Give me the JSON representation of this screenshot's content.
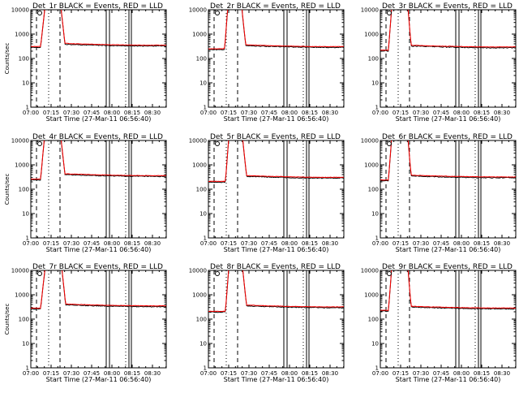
{
  "figure": {
    "layout": {
      "rows": 3,
      "cols": 3
    },
    "panels": [
      {
        "title": "Det_1r BLACK = Events, RED = LLD",
        "plateau": 320,
        "pre": 310,
        "rise": [
          7.12,
          7.18
        ],
        "fall": [
          7.36,
          7.42
        ]
      },
      {
        "title": "Det_2r BLACK = Events, RED = LLD",
        "plateau": 280,
        "pre": 250,
        "rise": [
          7.2,
          7.24
        ],
        "fall": [
          7.4,
          7.46
        ]
      },
      {
        "title": "Det_3r BLACK = Events, RED = LLD",
        "plateau": 270,
        "pre": 220,
        "rise": [
          7.1,
          7.14
        ],
        "fall": [
          7.33,
          7.38
        ]
      },
      {
        "title": "Det_4r BLACK = Events, RED = LLD",
        "plateau": 330,
        "pre": 260,
        "rise": [
          7.12,
          7.17
        ],
        "fall": [
          7.36,
          7.42
        ]
      },
      {
        "title": "Det_5r BLACK = Events, RED = LLD",
        "plateau": 280,
        "pre": 210,
        "rise": [
          7.21,
          7.25
        ],
        "fall": [
          7.41,
          7.47
        ]
      },
      {
        "title": "Det_6r BLACK = Events, RED = LLD",
        "plateau": 290,
        "pre": 240,
        "rise": [
          7.1,
          7.14
        ],
        "fall": [
          7.33,
          7.38
        ]
      },
      {
        "title": "Det_7r BLACK = Events, RED = LLD",
        "plateau": 320,
        "pre": 280,
        "rise": [
          7.12,
          7.18
        ],
        "fall": [
          7.37,
          7.43
        ]
      },
      {
        "title": "Det_8r BLACK = Events, RED = LLD",
        "plateau": 290,
        "pre": 210,
        "rise": [
          7.21,
          7.25
        ],
        "fall": [
          7.41,
          7.47
        ]
      },
      {
        "title": "Det_9r BLACK = Events, RED = LLD",
        "plateau": 260,
        "pre": 230,
        "rise": [
          7.1,
          7.14
        ],
        "fall": [
          7.33,
          7.38
        ]
      }
    ]
  },
  "chart_data": {
    "type": "line",
    "panel_count": 9,
    "xlabel": "Start Time (27-Mar-11 06:56:40)",
    "ylabel": "Counts/sec",
    "x_range_hours": [
      7.0,
      8.67
    ],
    "x_ticks": [
      {
        "label": "07:00",
        "value": 7.0
      },
      {
        "label": "07:15",
        "value": 7.25
      },
      {
        "label": "07:30",
        "value": 7.5
      },
      {
        "label": "07:45",
        "value": 7.75
      },
      {
        "label": "08:00",
        "value": 8.0
      },
      {
        "label": "08:15",
        "value": 8.25
      },
      {
        "label": "08:30",
        "value": 8.5
      }
    ],
    "y_scale": "log",
    "ylim": [
      1,
      10000
    ],
    "y_ticks": [
      {
        "label": "1",
        "value": 1
      },
      {
        "label": "10",
        "value": 10
      },
      {
        "label": "100",
        "value": 100
      },
      {
        "label": "1000",
        "value": 1000
      },
      {
        "label": "10000",
        "value": 10000
      }
    ],
    "series": [
      {
        "name": "Events",
        "color": "#000000"
      },
      {
        "name": "LLD",
        "color": "#ff0000"
      }
    ],
    "marker_lines": {
      "dashed": [
        7.07,
        7.36
      ],
      "dotted": [
        7.22,
        8.17
      ],
      "solid": [
        7.93,
        7.97,
        8.21,
        8.24
      ]
    }
  }
}
